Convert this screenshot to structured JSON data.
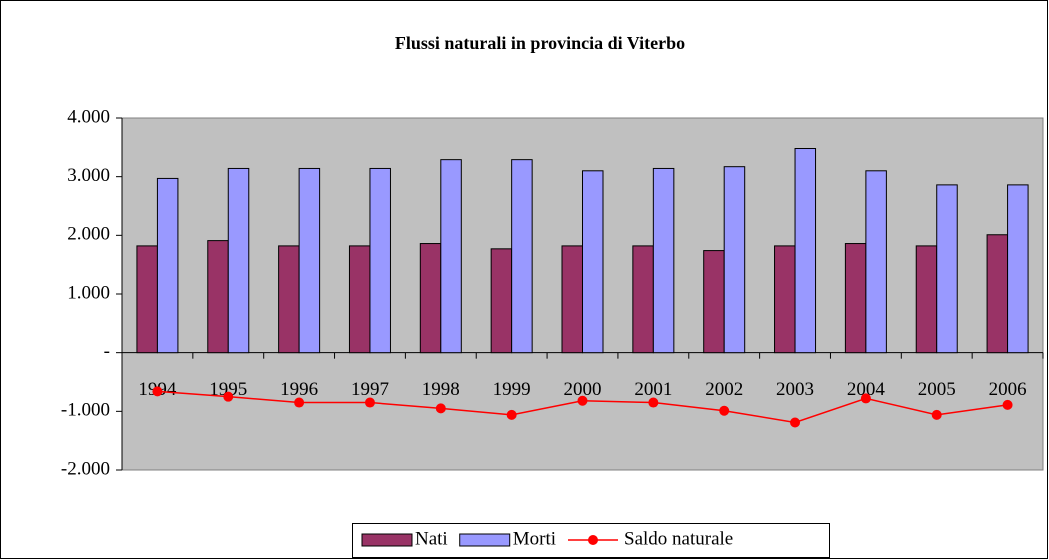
{
  "chart_data": {
    "type": "bar_line",
    "title": "Flussi naturali in provincia di Viterbo",
    "categories": [
      "1994",
      "1995",
      "1996",
      "1997",
      "1998",
      "1999",
      "2000",
      "2001",
      "2002",
      "2003",
      "2004",
      "2005",
      "2006"
    ],
    "series": [
      {
        "name": "Nati",
        "type": "bar",
        "color": "#993366",
        "values": [
          1820,
          1910,
          1820,
          1820,
          1860,
          1770,
          1820,
          1820,
          1740,
          1820,
          1860,
          1820,
          2010
        ]
      },
      {
        "name": "Morti",
        "type": "bar",
        "color": "#9999ff",
        "values": [
          2970,
          3140,
          3140,
          3140,
          3290,
          3290,
          3100,
          3140,
          3170,
          3480,
          3100,
          2860,
          2860
        ]
      },
      {
        "name": "Saldo naturale",
        "type": "line",
        "color": "#ff0000",
        "values": [
          -660,
          -750,
          -850,
          -850,
          -950,
          -1060,
          -820,
          -850,
          -990,
          -1190,
          -780,
          -1060,
          -890
        ]
      }
    ],
    "ylim": [
      -2000,
      4000
    ],
    "yticks": [
      {
        "value": -2000,
        "label": "-2.000"
      },
      {
        "value": -1000,
        "label": "-1.000"
      },
      {
        "value": 0,
        "label": "-"
      },
      {
        "value": 1000,
        "label": "1.000"
      },
      {
        "value": 2000,
        "label": "2.000"
      },
      {
        "value": 3000,
        "label": "3.000"
      },
      {
        "value": 4000,
        "label": "4.000"
      }
    ],
    "legend": "bottom"
  }
}
